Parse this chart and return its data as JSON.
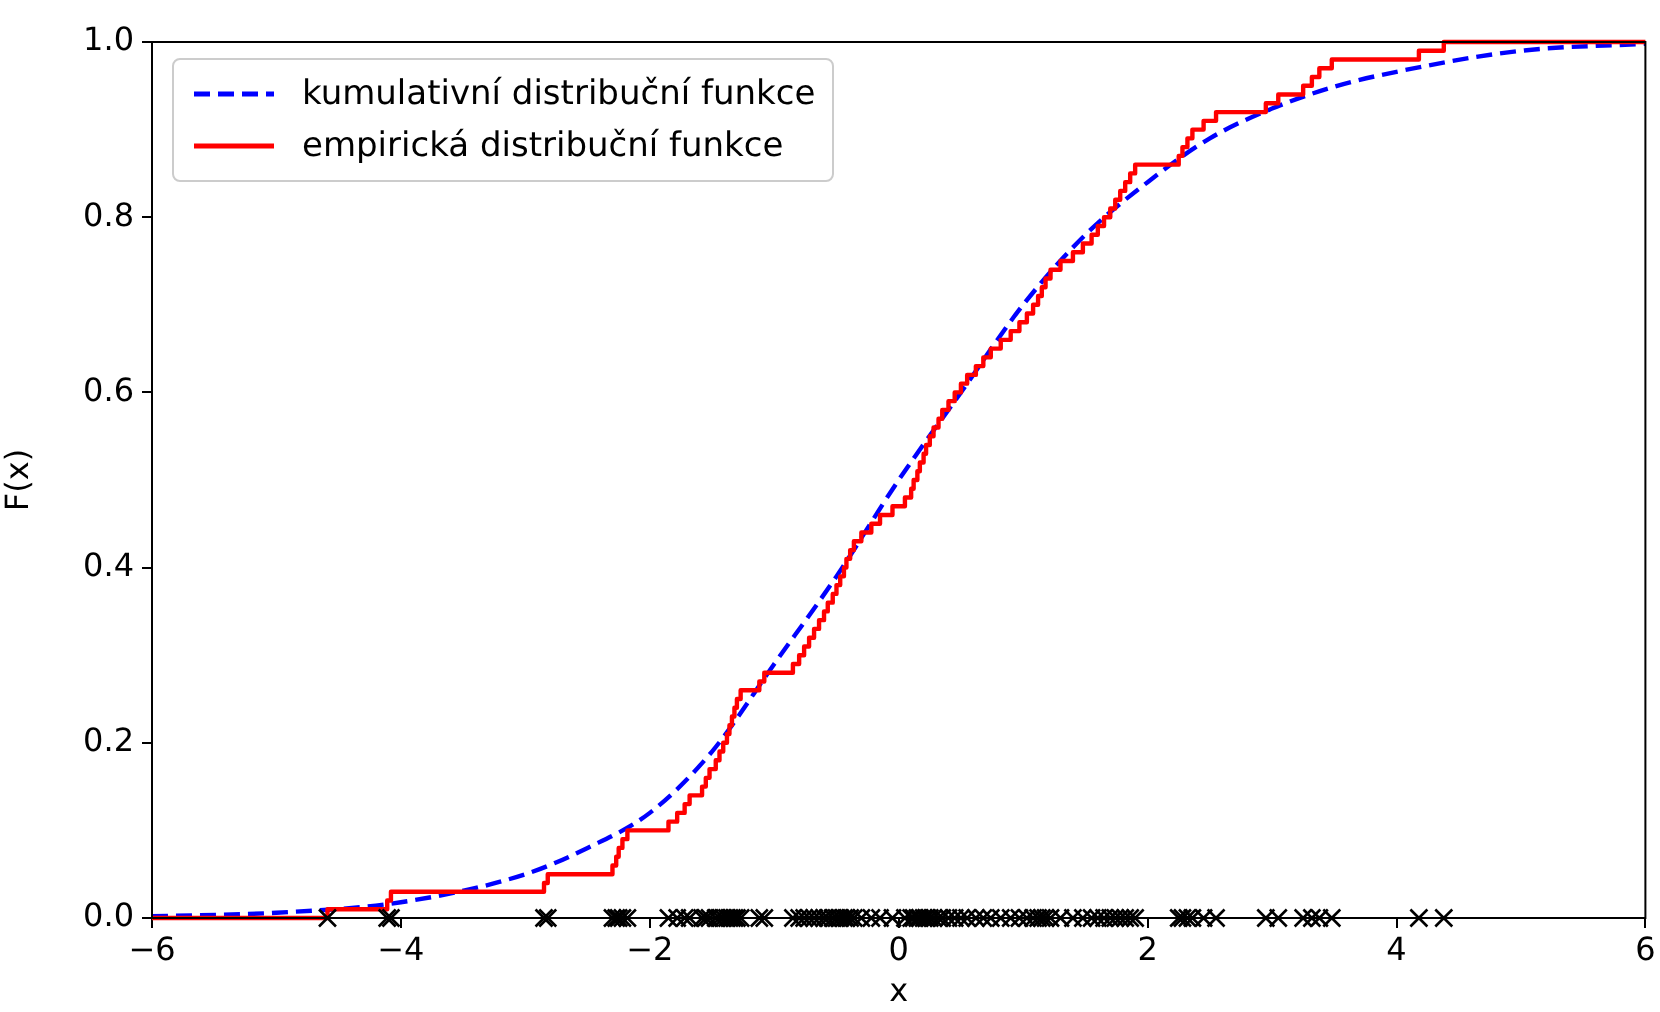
{
  "chart_data": {
    "type": "line",
    "xlabel": "x",
    "ylabel": "F(x)",
    "xlim": [
      -6,
      6
    ],
    "ylim": [
      0,
      1
    ],
    "xticks": [
      {
        "value": -6,
        "label": "−6"
      },
      {
        "value": -4,
        "label": "−4"
      },
      {
        "value": -2,
        "label": "−2"
      },
      0,
      2,
      4,
      6
    ],
    "yticks": [
      {
        "value": 0,
        "label": "0.0"
      },
      {
        "value": 0.2,
        "label": "0.2"
      },
      {
        "value": 0.4,
        "label": "0.4"
      },
      {
        "value": 0.6,
        "label": "0.6"
      },
      {
        "value": 0.8,
        "label": "0.8"
      },
      {
        "value": 1,
        "label": "1.0"
      }
    ],
    "grid": false,
    "legend": "top left",
    "series": [
      {
        "name": "kumulativní distribuční funkce",
        "type": "line",
        "line_style": "dashed",
        "color": "#0000ff",
        "x": [
          -6,
          -5,
          -4,
          -3,
          -2.5,
          -2,
          -1.5,
          -1,
          -0.5,
          0,
          0.5,
          1,
          1.5,
          2,
          2.5,
          3,
          3.5,
          4,
          5,
          6
        ],
        "values": [
          0.002,
          0.006,
          0.018,
          0.05,
          0.08,
          0.12,
          0.19,
          0.29,
          0.39,
          0.5,
          0.6,
          0.7,
          0.78,
          0.84,
          0.89,
          0.924,
          0.949,
          0.966,
          0.99,
          0.998
        ]
      },
      {
        "name": "empirická distribuční funkce",
        "type": "step",
        "line_style": "solid",
        "color": "#ff0000",
        "x": [
          -6,
          -4.59,
          -4.11,
          -4.08,
          -2.85,
          -2.82,
          -2.3,
          -2.27,
          -2.25,
          -2.22,
          -2.18,
          -1.85,
          -1.78,
          -1.72,
          -1.68,
          -1.58,
          -1.55,
          -1.52,
          -1.47,
          -1.44,
          -1.41,
          -1.38,
          -1.36,
          -1.34,
          -1.32,
          -1.3,
          -1.27,
          -1.12,
          -1.08,
          -0.85,
          -0.8,
          -0.76,
          -0.72,
          -0.68,
          -0.64,
          -0.6,
          -0.57,
          -0.53,
          -0.5,
          -0.47,
          -0.44,
          -0.42,
          -0.39,
          -0.36,
          -0.3,
          -0.22,
          -0.15,
          -0.05,
          0.05,
          0.1,
          0.12,
          0.15,
          0.17,
          0.2,
          0.22,
          0.25,
          0.28,
          0.32,
          0.35,
          0.4,
          0.45,
          0.5,
          0.55,
          0.62,
          0.68,
          0.74,
          0.82,
          0.9,
          0.97,
          1.03,
          1.08,
          1.12,
          1.15,
          1.18,
          1.22,
          1.3,
          1.4,
          1.48,
          1.55,
          1.6,
          1.65,
          1.7,
          1.74,
          1.78,
          1.82,
          1.86,
          1.9,
          2.25,
          2.28,
          2.32,
          2.36,
          2.45,
          2.55,
          2.95,
          3.05,
          3.25,
          3.32,
          3.38,
          3.48,
          4.18,
          4.38,
          6
        ],
        "values": [
          0,
          0.01,
          0.02,
          0.03,
          0.04,
          0.05,
          0.06,
          0.07,
          0.08,
          0.09,
          0.1,
          0.11,
          0.12,
          0.13,
          0.14,
          0.15,
          0.16,
          0.17,
          0.18,
          0.19,
          0.2,
          0.21,
          0.22,
          0.23,
          0.24,
          0.25,
          0.26,
          0.27,
          0.28,
          0.29,
          0.3,
          0.31,
          0.32,
          0.33,
          0.34,
          0.35,
          0.36,
          0.37,
          0.38,
          0.39,
          0.4,
          0.41,
          0.42,
          0.43,
          0.44,
          0.45,
          0.46,
          0.47,
          0.48,
          0.49,
          0.5,
          0.51,
          0.52,
          0.53,
          0.54,
          0.55,
          0.56,
          0.57,
          0.58,
          0.59,
          0.6,
          0.61,
          0.62,
          0.63,
          0.64,
          0.65,
          0.66,
          0.67,
          0.68,
          0.69,
          0.7,
          0.71,
          0.72,
          0.73,
          0.74,
          0.75,
          0.76,
          0.77,
          0.78,
          0.79,
          0.8,
          0.81,
          0.82,
          0.83,
          0.84,
          0.85,
          0.86,
          0.87,
          0.88,
          0.89,
          0.9,
          0.91,
          0.92,
          0.93,
          0.94,
          0.95,
          0.96,
          0.97,
          0.98,
          0.99,
          1,
          1
        ]
      },
      {
        "type": "scatter",
        "marker": "cross",
        "color": "#000000",
        "x": [
          -4.59,
          -4.11,
          -4.08,
          -2.85,
          -2.82,
          -2.3,
          -2.27,
          -2.25,
          -2.22,
          -2.18,
          -1.85,
          -1.78,
          -1.72,
          -1.68,
          -1.58,
          -1.55,
          -1.52,
          -1.47,
          -1.44,
          -1.41,
          -1.38,
          -1.36,
          -1.34,
          -1.32,
          -1.3,
          -1.27,
          -1.12,
          -1.08,
          -0.85,
          -0.8,
          -0.76,
          -0.72,
          -0.68,
          -0.64,
          -0.6,
          -0.57,
          -0.53,
          -0.5,
          -0.47,
          -0.44,
          -0.42,
          -0.39,
          -0.36,
          -0.3,
          -0.22,
          -0.15,
          -0.05,
          0.05,
          0.1,
          0.12,
          0.15,
          0.17,
          0.2,
          0.22,
          0.25,
          0.28,
          0.32,
          0.35,
          0.4,
          0.45,
          0.5,
          0.55,
          0.62,
          0.68,
          0.74,
          0.82,
          0.9,
          0.97,
          1.03,
          1.08,
          1.12,
          1.15,
          1.18,
          1.22,
          1.3,
          1.4,
          1.48,
          1.55,
          1.6,
          1.65,
          1.7,
          1.74,
          1.78,
          1.82,
          1.86,
          1.9,
          2.25,
          2.28,
          2.32,
          2.36,
          2.45,
          2.55,
          2.95,
          3.05,
          3.25,
          3.32,
          3.38,
          3.48,
          4.18,
          4.38
        ],
        "values": [
          0,
          0,
          0,
          0,
          0,
          0,
          0,
          0,
          0,
          0,
          0,
          0,
          0,
          0,
          0,
          0,
          0,
          0,
          0,
          0,
          0,
          0,
          0,
          0,
          0,
          0,
          0,
          0,
          0,
          0,
          0,
          0,
          0,
          0,
          0,
          0,
          0,
          0,
          0,
          0,
          0,
          0,
          0,
          0,
          0,
          0,
          0,
          0,
          0,
          0,
          0,
          0,
          0,
          0,
          0,
          0,
          0,
          0,
          0,
          0,
          0,
          0,
          0,
          0,
          0,
          0,
          0,
          0,
          0,
          0,
          0,
          0,
          0,
          0,
          0,
          0,
          0,
          0,
          0,
          0,
          0,
          0,
          0,
          0,
          0,
          0,
          0,
          0,
          0,
          0,
          0,
          0,
          0,
          0,
          0,
          0,
          0,
          0,
          0,
          0
        ]
      }
    ]
  }
}
